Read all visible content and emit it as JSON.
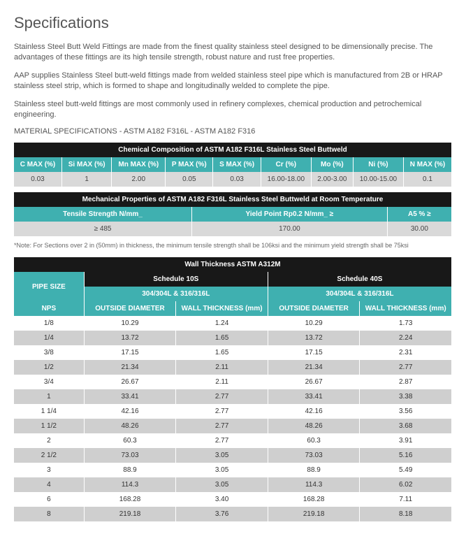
{
  "heading": "Specifications",
  "para1": "Stainless Steel Butt Weld Fittings are made from the finest quality stainless steel designed to be dimensionally precise. The advantages of these fittings are its high tensile strength, robust nature and rust free properties.",
  "para2": "AAP supplies Stainless Steel butt-weld fittings made from welded stainless steel pipe which is manufactured from 2B or HRAP stainless steel strip, which is formed to shape and longitudinally welded to complete the pipe.",
  "para3": "Stainless steel butt-weld fittings are most commonly used in refinery complexes, chemical production and petrochemical engineering.",
  "matspec": "MATERIAL SPECIFICATIONS - ASTM A182 F316L - ASTM A182 F316",
  "chem": {
    "title": "Chemical Composition of ASTM A182 F316L Stainless Steel Buttweld",
    "headers": [
      "C MAX (%)",
      "Si MAX (%)",
      "Mn MAX (%)",
      "P MAX (%)",
      "S MAX (%)",
      "Cr (%)",
      "Mo (%)",
      "Ni (%)",
      "N MAX (%)"
    ],
    "values": [
      "0.03",
      "1",
      "2.00",
      "0.05",
      "0.03",
      "16.00-18.00",
      "2.00-3.00",
      "10.00-15.00",
      "0.1"
    ]
  },
  "mech": {
    "title": "Mechanical Properties of  ASTM A182 F316L Stainless Steel Buttweld at Room Temperature",
    "headers": [
      "Tensile Strength N/mm_",
      "Yield Point Rp0.2  N/mm_ ≥",
      "A5 % ≥"
    ],
    "values": [
      "≥ 485",
      "170.00",
      "30.00"
    ]
  },
  "note": "*Note: For Sections over 2 in (50mm) in thickness, the minimum tensile strength shall be 106ksi and the minimum yield strength shall be 75ksi",
  "wall": {
    "maintitle": "Wall Thickness ASTM A312M",
    "pipe_size": "PIPE SIZE",
    "sched10": "Schedule 10S",
    "sched40": "Schedule 40S",
    "grade": "304/304L & 316/316L",
    "nps": "NPS",
    "od": "OUTSIDE DIAMETER",
    "wt1": "WALL THICKNESS (mm)",
    "wt2": "WALL THICKNESS (mm)",
    "rows": [
      {
        "nps": "1/8",
        "od1": "10.29",
        "wt1": "1.24",
        "od2": "10.29",
        "wt2": "1.73"
      },
      {
        "nps": "1/4",
        "od1": "13.72",
        "wt1": "1.65",
        "od2": "13.72",
        "wt2": "2.24"
      },
      {
        "nps": "3/8",
        "od1": "17.15",
        "wt1": "1.65",
        "od2": "17.15",
        "wt2": "2.31"
      },
      {
        "nps": "1/2",
        "od1": "21.34",
        "wt1": "2.11",
        "od2": "21.34",
        "wt2": "2.77"
      },
      {
        "nps": "3/4",
        "od1": "26.67",
        "wt1": "2.11",
        "od2": "26.67",
        "wt2": "2.87"
      },
      {
        "nps": "1",
        "od1": "33.41",
        "wt1": "2.77",
        "od2": "33.41",
        "wt2": "3.38"
      },
      {
        "nps": "1 1/4",
        "od1": "42.16",
        "wt1": "2.77",
        "od2": "42.16",
        "wt2": "3.56"
      },
      {
        "nps": "1 1/2",
        "od1": "48.26",
        "wt1": "2.77",
        "od2": "48.26",
        "wt2": "3.68"
      },
      {
        "nps": "2",
        "od1": "60.3",
        "wt1": "2.77",
        "od2": "60.3",
        "wt2": "3.91"
      },
      {
        "nps": "2 1/2",
        "od1": "73.03",
        "wt1": "3.05",
        "od2": "73.03",
        "wt2": "5.16"
      },
      {
        "nps": "3",
        "od1": "88.9",
        "wt1": "3.05",
        "od2": "88.9",
        "wt2": "5.49"
      },
      {
        "nps": "4",
        "od1": "114.3",
        "wt1": "3.05",
        "od2": "114.3",
        "wt2": "6.02"
      },
      {
        "nps": "6",
        "od1": "168.28",
        "wt1": "3.40",
        "od2": "168.28",
        "wt2": "7.11"
      },
      {
        "nps": "8",
        "od1": "219.18",
        "wt1": "3.76",
        "od2": "219.18",
        "wt2": "8.18"
      }
    ]
  },
  "colors": {
    "black": "#181818",
    "teal": "#3fb0b0",
    "grey": "#d9d9d9"
  }
}
